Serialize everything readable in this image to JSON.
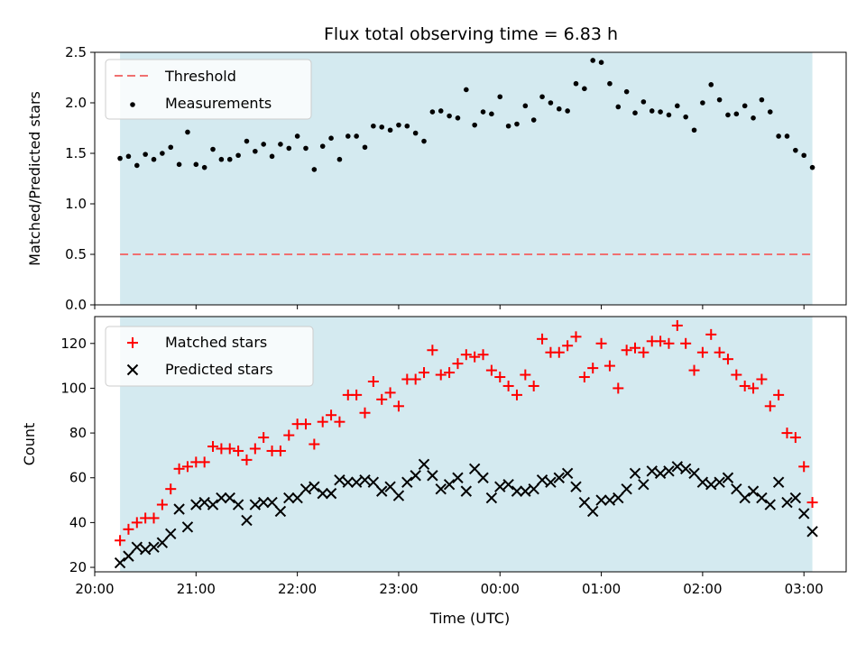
{
  "title": "Flux total observing time = 6.83 h",
  "colors": {
    "band": "#d4eaf0",
    "threshold": "#f07070",
    "measurement": "#000000",
    "matched": "#ff0000",
    "predicted": "#000000"
  },
  "chart_data": [
    {
      "type": "scatter",
      "ylabel": "Matched/Predicted stars",
      "xlim": [
        "20:00",
        "03:25"
      ],
      "ylim": [
        0,
        2.5
      ],
      "yticks": [
        "0.0",
        "0.5",
        "1.0",
        "1.5",
        "2.0",
        "2.5"
      ],
      "observing_window": [
        "20:15",
        "03:05"
      ],
      "legend": {
        "position": "top-left",
        "entries": [
          "Threshold",
          "Measurements"
        ]
      },
      "threshold": {
        "name": "Threshold",
        "value": 0.5,
        "style": "dashed"
      },
      "series": [
        {
          "name": "Measurements",
          "marker": "dot",
          "x": [
            "20:15",
            "20:20",
            "20:25",
            "20:30",
            "20:35",
            "20:40",
            "20:45",
            "20:50",
            "20:55",
            "21:00",
            "21:05",
            "21:10",
            "21:15",
            "21:20",
            "21:25",
            "21:30",
            "21:35",
            "21:40",
            "21:45",
            "21:50",
            "21:55",
            "22:00",
            "22:05",
            "22:10",
            "22:15",
            "22:20",
            "22:25",
            "22:30",
            "22:35",
            "22:40",
            "22:45",
            "22:50",
            "22:55",
            "23:00",
            "23:05",
            "23:10",
            "23:15",
            "23:20",
            "23:25",
            "23:30",
            "23:35",
            "23:40",
            "23:45",
            "23:50",
            "23:55",
            "00:00",
            "00:05",
            "00:10",
            "00:15",
            "00:20",
            "00:25",
            "00:30",
            "00:35",
            "00:40",
            "00:45",
            "00:50",
            "00:55",
            "01:00",
            "01:05",
            "01:10",
            "01:15",
            "01:20",
            "01:25",
            "01:30",
            "01:35",
            "01:40",
            "01:45",
            "01:50",
            "01:55",
            "02:00",
            "02:05",
            "02:10",
            "02:15",
            "02:20",
            "02:25",
            "02:30",
            "02:35",
            "02:40",
            "02:45",
            "02:50",
            "02:55",
            "03:00",
            "03:05"
          ],
          "y": [
            1.45,
            1.47,
            1.38,
            1.49,
            1.44,
            1.5,
            1.56,
            1.39,
            1.71,
            1.39,
            1.36,
            1.54,
            1.44,
            1.44,
            1.48,
            1.62,
            1.52,
            1.59,
            1.47,
            1.59,
            1.55,
            1.67,
            1.55,
            1.34,
            1.57,
            1.65,
            1.44,
            1.67,
            1.67,
            1.56,
            1.77,
            1.76,
            1.73,
            1.78,
            1.77,
            1.7,
            1.62,
            1.91,
            1.92,
            1.87,
            1.85,
            2.13,
            1.78,
            1.91,
            1.89,
            2.06,
            1.77,
            1.79,
            1.97,
            1.83,
            2.06,
            2.0,
            1.94,
            1.92,
            2.19,
            2.14,
            2.42,
            2.4,
            2.19,
            1.96,
            2.11,
            1.9,
            2.01,
            1.92,
            1.91,
            1.88,
            1.97,
            1.86,
            1.73,
            2.0,
            2.18,
            2.03,
            1.88,
            1.89,
            1.97,
            1.85,
            2.03,
            1.91,
            1.67,
            1.67,
            1.53,
            1.48,
            1.36
          ]
        }
      ]
    },
    {
      "type": "scatter",
      "xlabel": "Time (UTC)",
      "ylabel": "Count",
      "xlim": [
        "20:00",
        "03:25"
      ],
      "ylim": [
        18,
        132
      ],
      "yticks": [
        "20",
        "40",
        "60",
        "80",
        "100",
        "120"
      ],
      "xticks": [
        "20:00",
        "21:00",
        "22:00",
        "23:00",
        "00:00",
        "01:00",
        "02:00",
        "03:00"
      ],
      "observing_window": [
        "20:15",
        "03:05"
      ],
      "legend": {
        "position": "top-left",
        "entries": [
          "Matched stars",
          "Predicted stars"
        ]
      },
      "series": [
        {
          "name": "Matched stars",
          "marker": "plus",
          "x": [
            "20:15",
            "20:20",
            "20:25",
            "20:30",
            "20:35",
            "20:40",
            "20:45",
            "20:50",
            "20:55",
            "21:00",
            "21:05",
            "21:10",
            "21:15",
            "21:20",
            "21:25",
            "21:30",
            "21:35",
            "21:40",
            "21:45",
            "21:50",
            "21:55",
            "22:00",
            "22:05",
            "22:10",
            "22:15",
            "22:20",
            "22:25",
            "22:30",
            "22:35",
            "22:40",
            "22:45",
            "22:50",
            "22:55",
            "23:00",
            "23:05",
            "23:10",
            "23:15",
            "23:20",
            "23:25",
            "23:30",
            "23:35",
            "23:40",
            "23:45",
            "23:50",
            "23:55",
            "00:00",
            "00:05",
            "00:10",
            "00:15",
            "00:20",
            "00:25",
            "00:30",
            "00:35",
            "00:40",
            "00:45",
            "00:50",
            "00:55",
            "01:00",
            "01:05",
            "01:10",
            "01:15",
            "01:20",
            "01:25",
            "01:30",
            "01:35",
            "01:40",
            "01:45",
            "01:50",
            "01:55",
            "02:00",
            "02:05",
            "02:10",
            "02:15",
            "02:20",
            "02:25",
            "02:30",
            "02:35",
            "02:40",
            "02:45",
            "02:50",
            "02:55",
            "03:00",
            "03:05"
          ],
          "y": [
            32,
            37,
            40,
            42,
            42,
            48,
            55,
            64,
            65,
            67,
            67,
            74,
            73,
            73,
            72,
            68,
            73,
            78,
            72,
            72,
            79,
            84,
            84,
            75,
            85,
            88,
            85,
            97,
            97,
            89,
            103,
            95,
            98,
            92,
            104,
            104,
            107,
            117,
            106,
            107,
            111,
            115,
            114,
            115,
            108,
            105,
            101,
            97,
            106,
            101,
            122,
            116,
            116,
            119,
            123,
            105,
            109,
            120,
            110,
            100,
            117,
            118,
            116,
            121,
            121,
            120,
            128,
            120,
            108,
            116,
            124,
            116,
            113,
            106,
            101,
            100,
            104,
            92,
            97,
            80,
            78,
            65,
            49
          ]
        },
        {
          "name": "Predicted stars",
          "marker": "x",
          "x": [
            "20:15",
            "20:20",
            "20:25",
            "20:30",
            "20:35",
            "20:40",
            "20:45",
            "20:50",
            "20:55",
            "21:00",
            "21:05",
            "21:10",
            "21:15",
            "21:20",
            "21:25",
            "21:30",
            "21:35",
            "21:40",
            "21:45",
            "21:50",
            "21:55",
            "22:00",
            "22:05",
            "22:10",
            "22:15",
            "22:20",
            "22:25",
            "22:30",
            "22:35",
            "22:40",
            "22:45",
            "22:50",
            "22:55",
            "23:00",
            "23:05",
            "23:10",
            "23:15",
            "23:20",
            "23:25",
            "23:30",
            "23:35",
            "23:40",
            "23:45",
            "23:50",
            "23:55",
            "00:00",
            "00:05",
            "00:10",
            "00:15",
            "00:20",
            "00:25",
            "00:30",
            "00:35",
            "00:40",
            "00:45",
            "00:50",
            "00:55",
            "01:00",
            "01:05",
            "01:10",
            "01:15",
            "01:20",
            "01:25",
            "01:30",
            "01:35",
            "01:40",
            "01:45",
            "01:50",
            "01:55",
            "02:00",
            "02:05",
            "02:10",
            "02:15",
            "02:20",
            "02:25",
            "02:30",
            "02:35",
            "02:40",
            "02:45",
            "02:50",
            "02:55",
            "03:00",
            "03:05"
          ],
          "y": [
            22,
            25,
            29,
            28,
            29,
            31,
            35,
            46,
            38,
            48,
            49,
            48,
            51,
            51,
            48,
            41,
            48,
            49,
            49,
            45,
            51,
            51,
            55,
            56,
            53,
            53,
            59,
            58,
            58,
            59,
            58,
            54,
            56,
            52,
            58,
            61,
            66,
            61,
            55,
            57,
            60,
            54,
            64,
            60,
            51,
            56,
            57,
            54,
            54,
            55,
            59,
            58,
            60,
            62,
            56,
            49,
            45,
            50,
            50,
            51,
            55,
            62,
            57,
            63,
            62,
            63,
            65,
            64,
            62,
            58,
            57,
            58,
            60,
            55,
            51,
            54,
            51,
            48,
            58,
            49,
            51,
            44,
            36
          ]
        }
      ]
    }
  ]
}
